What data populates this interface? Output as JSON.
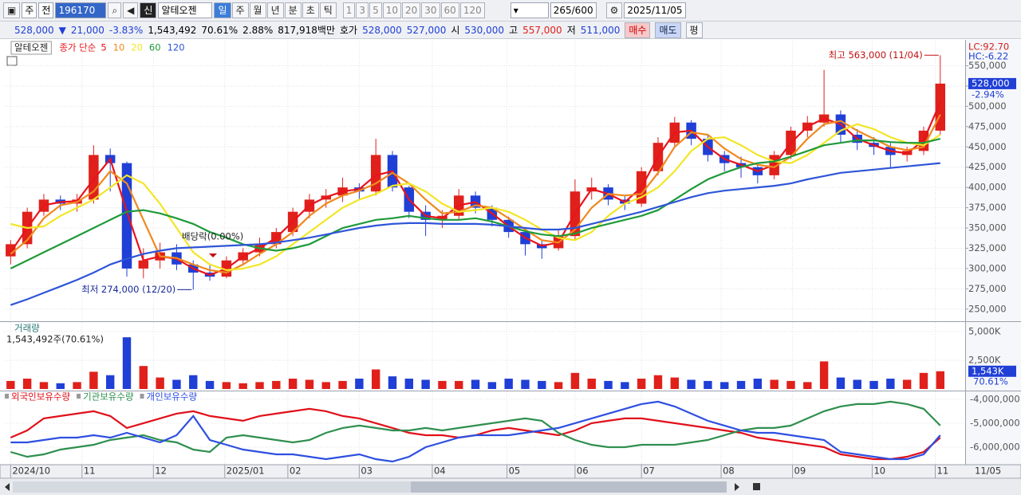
{
  "toolbar": {
    "period": "주",
    "prefix": "전",
    "code": "196170",
    "badge": "신",
    "name": "알테오젠",
    "intervals": [
      "일",
      "주",
      "월",
      "년",
      "분",
      "초",
      "틱"
    ],
    "counts": [
      "1",
      "3",
      "5",
      "10",
      "20",
      "30",
      "60",
      "120"
    ],
    "range": "265/600",
    "date": "2025/11/05"
  },
  "quote": {
    "price": "528,000",
    "arrow": "▼",
    "change": "21,000",
    "rate": "-3.83%",
    "volume": "1,543,492",
    "volume_ratio": "70.61%",
    "turnover": "2.88%",
    "amount": "817,918백만",
    "bid_label": "호가",
    "ask": "528,000",
    "bid": "527,000",
    "open_label": "시",
    "open": "530,000",
    "high_label": "고",
    "high": "557,000",
    "low_label": "저",
    "low": "511,000",
    "buttons": [
      "매수",
      "매도",
      "평"
    ]
  },
  "chart_data": [
    {
      "type": "candlestick",
      "title": "알테오젠",
      "legend_label": "종가 단순",
      "up_color": "#e0201b",
      "down_color": "#1f3fd6",
      "open": [
        315000,
        330000,
        370000,
        385000,
        380000,
        385000,
        440000,
        430000,
        300000,
        310000,
        320000,
        305000,
        295000,
        290000,
        310000,
        320000,
        330000,
        345000,
        370000,
        385000,
        390000,
        400000,
        395000,
        440000,
        400000,
        370000,
        360000,
        365000,
        390000,
        375000,
        360000,
        345000,
        330000,
        325000,
        340000,
        395000,
        400000,
        385000,
        380000,
        420000,
        455000,
        480000,
        460000,
        440000,
        430000,
        425000,
        415000,
        440000,
        470000,
        480000,
        490000,
        465000,
        455000,
        450000,
        440000,
        445000,
        470000
      ],
      "high": [
        335000,
        375000,
        392000,
        390000,
        392000,
        452000,
        448000,
        432000,
        325000,
        332000,
        330000,
        310000,
        305000,
        315000,
        325000,
        338000,
        350000,
        375000,
        392000,
        398000,
        412000,
        405000,
        460000,
        445000,
        402000,
        378000,
        372000,
        398000,
        395000,
        378000,
        364000,
        350000,
        335000,
        348000,
        410000,
        412000,
        404000,
        390000,
        425000,
        462000,
        487000,
        483000,
        465000,
        445000,
        438000,
        428000,
        445000,
        475000,
        488000,
        545000,
        495000,
        472000,
        462000,
        455000,
        450000,
        475000,
        563000
      ],
      "low": [
        305000,
        325000,
        365000,
        372000,
        370000,
        380000,
        395000,
        290000,
        288000,
        300000,
        298000,
        274000,
        285000,
        288000,
        305000,
        315000,
        325000,
        340000,
        362000,
        375000,
        382000,
        385000,
        390000,
        395000,
        362000,
        340000,
        350000,
        360000,
        368000,
        352000,
        338000,
        316000,
        312000,
        322000,
        335000,
        385000,
        378000,
        372000,
        376000,
        415000,
        450000,
        452000,
        432000,
        420000,
        412000,
        405000,
        410000,
        435000,
        462000,
        475000,
        455000,
        446000,
        440000,
        425000,
        432000,
        440000,
        465000
      ],
      "close": [
        330000,
        370000,
        385000,
        380000,
        385000,
        440000,
        430000,
        300000,
        310000,
        320000,
        305000,
        295000,
        290000,
        310000,
        320000,
        330000,
        345000,
        370000,
        385000,
        390000,
        400000,
        395000,
        440000,
        400000,
        370000,
        360000,
        365000,
        390000,
        375000,
        360000,
        345000,
        330000,
        325000,
        340000,
        395000,
        400000,
        385000,
        380000,
        420000,
        455000,
        480000,
        460000,
        440000,
        430000,
        425000,
        415000,
        440000,
        470000,
        480000,
        490000,
        465000,
        455000,
        450000,
        440000,
        445000,
        470000,
        528000
      ],
      "series": [
        {
          "name": "5",
          "color": "#e8141c",
          "values": [
            320000,
            350000,
            378000,
            382000,
            383000,
            410000,
            435000,
            370000,
            310000,
            315000,
            312000,
            300000,
            292000,
            300000,
            315000,
            325000,
            338000,
            358000,
            378000,
            388000,
            395000,
            398000,
            415000,
            420000,
            385000,
            365000,
            362000,
            378000,
            382000,
            368000,
            352000,
            338000,
            328000,
            332000,
            368000,
            398000,
            392000,
            382000,
            400000,
            438000,
            468000,
            470000,
            450000,
            435000,
            428000,
            420000,
            428000,
            455000,
            475000,
            485000,
            478000,
            460000,
            452000,
            445000,
            442000,
            458000,
            505000
          ]
        },
        {
          "name": "10",
          "color": "#f0891e",
          "values": [
            318000,
            335000,
            362000,
            378000,
            382000,
            395000,
            420000,
            405000,
            360000,
            315000,
            313000,
            305000,
            298000,
            295000,
            305000,
            318000,
            330000,
            345000,
            365000,
            380000,
            390000,
            396000,
            405000,
            418000,
            405000,
            385000,
            368000,
            370000,
            378000,
            375000,
            362000,
            348000,
            335000,
            332000,
            348000,
            375000,
            392000,
            390000,
            392000,
            418000,
            450000,
            468000,
            465000,
            448000,
            435000,
            428000,
            425000,
            438000,
            460000,
            478000,
            482000,
            470000,
            460000,
            450000,
            446000,
            450000,
            490000
          ]
        },
        {
          "name": "20",
          "color": "#f2e626",
          "values": [
            355000,
            350000,
            352000,
            365000,
            375000,
            385000,
            400000,
            415000,
            405000,
            380000,
            350000,
            320000,
            305000,
            298000,
            300000,
            305000,
            315000,
            330000,
            345000,
            360000,
            375000,
            385000,
            392000,
            402000,
            405000,
            395000,
            380000,
            370000,
            372000,
            375000,
            370000,
            360000,
            348000,
            338000,
            335000,
            345000,
            365000,
            380000,
            388000,
            400000,
            420000,
            445000,
            460000,
            462000,
            452000,
            440000,
            432000,
            430000,
            440000,
            455000,
            470000,
            478000,
            472000,
            462000,
            455000,
            452000,
            465000
          ]
        },
        {
          "name": "60",
          "color": "#1f9a3a",
          "values": [
            300000,
            310000,
            320000,
            330000,
            340000,
            350000,
            360000,
            370000,
            372000,
            368000,
            362000,
            355000,
            345000,
            338000,
            330000,
            325000,
            322000,
            325000,
            330000,
            340000,
            350000,
            355000,
            360000,
            362000,
            365000,
            362000,
            360000,
            360000,
            362000,
            358000,
            352000,
            346000,
            342000,
            340000,
            343000,
            350000,
            355000,
            360000,
            365000,
            372000,
            385000,
            398000,
            410000,
            418000,
            425000,
            430000,
            432000,
            438000,
            445000,
            452000,
            455000,
            458000,
            458000,
            456000,
            455000,
            455000,
            460000
          ]
        },
        {
          "name": "120",
          "color": "#2e55d8",
          "values": [
            255000,
            262000,
            270000,
            278000,
            286000,
            295000,
            305000,
            312000,
            318000,
            322000,
            325000,
            326000,
            327000,
            328000,
            329000,
            330000,
            332000,
            335000,
            338000,
            342000,
            346000,
            350000,
            353000,
            355000,
            356000,
            356000,
            355000,
            355000,
            355000,
            354000,
            352000,
            350000,
            348000,
            348000,
            350000,
            355000,
            360000,
            365000,
            370000,
            376000,
            382000,
            388000,
            393000,
            396000,
            398000,
            400000,
            402000,
            405000,
            410000,
            414000,
            418000,
            420000,
            422000,
            424000,
            426000,
            428000,
            430000
          ]
        }
      ],
      "xlim": [
        -0.4,
        57.5
      ],
      "xticks": [
        {
          "value": 0,
          "label": "2024/10"
        },
        {
          "value": 4.3,
          "label": "11"
        },
        {
          "value": 8.6,
          "label": "12"
        },
        {
          "value": 12.9,
          "label": "2025/01"
        },
        {
          "value": 16.7,
          "label": "02"
        },
        {
          "value": 21,
          "label": "03"
        },
        {
          "value": 25.4,
          "label": "04"
        },
        {
          "value": 29.9,
          "label": "05"
        },
        {
          "value": 34,
          "label": "06"
        },
        {
          "value": 38,
          "label": "07"
        },
        {
          "value": 42.8,
          "label": "08"
        },
        {
          "value": 47.1,
          "label": "09"
        },
        {
          "value": 51.9,
          "label": "10"
        },
        {
          "value": 55.7,
          "label": "11"
        }
      ],
      "last_date": "11/05",
      "ylim": [
        236000,
        580000
      ],
      "yticks": [
        {
          "value": 250000,
          "label": "250,000"
        },
        {
          "value": 275000,
          "label": "275,000"
        },
        {
          "value": 300000,
          "label": "300,000"
        },
        {
          "value": 325000,
          "label": "325,000"
        },
        {
          "value": 350000,
          "label": "350,000"
        },
        {
          "value": 375000,
          "label": "375,000"
        },
        {
          "value": 400000,
          "label": "400,000"
        },
        {
          "value": 425000,
          "label": "425,000"
        },
        {
          "value": 450000,
          "label": "450,000"
        },
        {
          "value": 475000,
          "label": "475,000"
        },
        {
          "value": 500000,
          "label": "500,000"
        },
        {
          "value": 525000,
          "label": "525,000"
        },
        {
          "value": 550000,
          "label": "550,000"
        }
      ],
      "grid": true,
      "indicators": [
        "LC:92.70",
        "HC:-6.22"
      ],
      "last_price": {
        "value": 528000,
        "label": "528,000"
      },
      "last_change": "-2.94%",
      "annotations": [
        {
          "label": "최고 563,000 (11/04)",
          "value": 563000
        },
        {
          "label": "최저 274,000 (12/20)",
          "value": 274000
        },
        {
          "label": "배당락(0.00%)"
        }
      ]
    },
    {
      "type": "bar",
      "title": "거래량",
      "subtitle": "1,543,492주(70.61%)",
      "values": [
        700000,
        900000,
        600000,
        500000,
        600000,
        1500000,
        1200000,
        4500000,
        2000000,
        1000000,
        800000,
        1200000,
        700000,
        600000,
        500000,
        600000,
        700000,
        900000,
        800000,
        600000,
        700000,
        900000,
        1700000,
        1100000,
        900000,
        800000,
        700000,
        700000,
        800000,
        600000,
        900000,
        800000,
        700000,
        600000,
        1400000,
        900000,
        700000,
        600000,
        900000,
        1200000,
        1000000,
        800000,
        700000,
        600000,
        700000,
        900000,
        800000,
        700000,
        600000,
        2400000,
        1000000,
        800000,
        700000,
        900000,
        800000,
        1400000,
        1543492
      ],
      "ylim": [
        0,
        5550000
      ],
      "yticks": [
        {
          "value": 2500000,
          "label": "2,500K"
        },
        {
          "value": 5000000,
          "label": "5,000K"
        }
      ],
      "last_value": {
        "value": 1543492,
        "label": "1,543K"
      },
      "last_ratio": "70.61%"
    },
    {
      "type": "line",
      "series": [
        {
          "name": "외국인보유수량",
          "color": "#e0101a",
          "values": [
            -5600000,
            -5300000,
            -4800000,
            -4700000,
            -4600000,
            -4500000,
            -4700000,
            -5200000,
            -5000000,
            -4800000,
            -4600000,
            -4500000,
            -4700000,
            -4800000,
            -4900000,
            -4700000,
            -4600000,
            -4500000,
            -4400000,
            -4500000,
            -4700000,
            -4800000,
            -5000000,
            -5200000,
            -5400000,
            -5500000,
            -5500000,
            -5600000,
            -5500000,
            -5300000,
            -5200000,
            -5300000,
            -5400000,
            -5500000,
            -5300000,
            -5000000,
            -4900000,
            -4800000,
            -4800000,
            -4900000,
            -5000000,
            -5100000,
            -5200000,
            -5300000,
            -5400000,
            -5600000,
            -5700000,
            -5800000,
            -5900000,
            -6000000,
            -6300000,
            -6400000,
            -6500000,
            -6500000,
            -6400000,
            -6200000,
            -5600000
          ]
        },
        {
          "name": "기관보유수량",
          "color": "#2f8f4f",
          "values": [
            -6200000,
            -6400000,
            -6300000,
            -6100000,
            -6000000,
            -5900000,
            -5700000,
            -5600000,
            -5500000,
            -5700000,
            -5800000,
            -6100000,
            -6200000,
            -5600000,
            -5500000,
            -5600000,
            -5700000,
            -5800000,
            -5700000,
            -5400000,
            -5200000,
            -5100000,
            -5200000,
            -5300000,
            -5300000,
            -5200000,
            -5300000,
            -5200000,
            -5100000,
            -5000000,
            -4900000,
            -4800000,
            -4900000,
            -5400000,
            -5700000,
            -5900000,
            -6000000,
            -6000000,
            -5900000,
            -5900000,
            -5900000,
            -5800000,
            -5700000,
            -5500000,
            -5300000,
            -5200000,
            -5200000,
            -5100000,
            -4800000,
            -4500000,
            -4300000,
            -4200000,
            -4200000,
            -4100000,
            -4200000,
            -4400000,
            -5100000
          ]
        },
        {
          "name": "개인보유수량",
          "color": "#2e4fe0",
          "values": [
            -5800000,
            -5800000,
            -5700000,
            -5600000,
            -5600000,
            -5500000,
            -5600000,
            -5400000,
            -5600000,
            -5800000,
            -5500000,
            -4700000,
            -5700000,
            -5900000,
            -6100000,
            -6200000,
            -6300000,
            -6300000,
            -6400000,
            -6500000,
            -6400000,
            -6300000,
            -6500000,
            -6600000,
            -6400000,
            -6000000,
            -5800000,
            -5600000,
            -5500000,
            -5500000,
            -5500000,
            -5400000,
            -5300000,
            -5200000,
            -5000000,
            -4800000,
            -4600000,
            -4400000,
            -4200000,
            -4100000,
            -4300000,
            -4600000,
            -4900000,
            -5100000,
            -5300000,
            -5400000,
            -5400000,
            -5500000,
            -5600000,
            -5700000,
            -6200000,
            -6300000,
            -6400000,
            -6500000,
            -6500000,
            -6300000,
            -5500000
          ]
        }
      ],
      "ylim": [
        -6700000,
        -3770000
      ],
      "yticks": [
        {
          "value": -4000000,
          "label": "-4,000,000"
        },
        {
          "value": -5000000,
          "label": "-5,000,000"
        },
        {
          "value": -6000000,
          "label": "-6,000,000"
        }
      ]
    }
  ]
}
